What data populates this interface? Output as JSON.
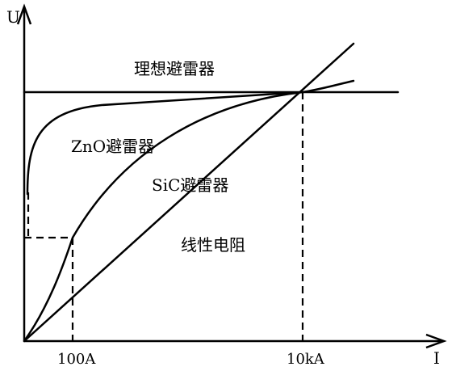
{
  "axes": {
    "y_label": "U",
    "x_label": "I",
    "x_ticks": [
      "100A",
      "10kA"
    ]
  },
  "curves": {
    "ideal_label": "理想避雷器",
    "zno_label": "ZnO避雷器",
    "sic_label": "SiC避雷器",
    "linear_label": "线性电阻"
  },
  "colors": {
    "ink": "#000000",
    "background": "#ffffff"
  }
}
